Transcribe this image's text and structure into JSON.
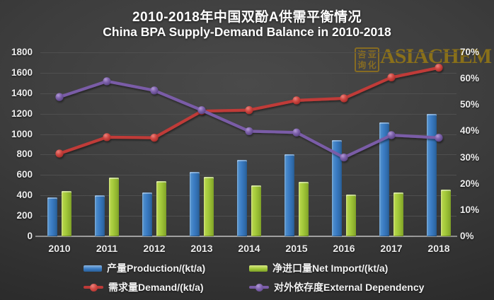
{
  "title": {
    "zh": "2010-2018年中国双酚A供需平衡情况",
    "en": "China BPA Supply-Demand Balance in 2010-2018"
  },
  "logo": {
    "brand": "ASIACHEM",
    "seal_chars": [
      "咨",
      "亚",
      "询",
      "化"
    ],
    "color": "#8e7318"
  },
  "chart_data": {
    "type": "bar",
    "subtype": "combo-bar-line-dual-axis",
    "title": "2010-2018年中国双酚A供需平衡情况 China BPA Supply-Demand Balance in 2010-2018",
    "categories": [
      "2010",
      "2011",
      "2012",
      "2013",
      "2014",
      "2015",
      "2016",
      "2017",
      "2018"
    ],
    "series": [
      {
        "name": "产量Production/(kt/a)",
        "type": "bar",
        "axis": "left",
        "color": "#3a7cc4",
        "values": [
          380,
          400,
          430,
          630,
          750,
          805,
          945,
          1115,
          1200
        ]
      },
      {
        "name": "净进口量Net Import/(kt/a)",
        "type": "bar",
        "axis": "left",
        "color": "#a3c93a",
        "values": [
          440,
          575,
          540,
          585,
          500,
          535,
          410,
          430,
          455
        ]
      },
      {
        "name": "需求量Demand/(kt/a)",
        "type": "line",
        "axis": "left",
        "color": "#c03a38",
        "values": [
          810,
          970,
          965,
          1225,
          1235,
          1330,
          1350,
          1555,
          1650
        ]
      },
      {
        "name": "对外依存度External Dependency",
        "type": "line",
        "axis": "right",
        "color": "#7a5ca7",
        "values": [
          53,
          59,
          55.5,
          48,
          40,
          39.5,
          30,
          38.5,
          37.5
        ]
      }
    ],
    "left_axis": {
      "min": 0,
      "max": 1800,
      "step": 200,
      "ticks": [
        "0",
        "200",
        "400",
        "600",
        "800",
        "1000",
        "1200",
        "1400",
        "1600",
        "1800"
      ]
    },
    "right_axis": {
      "min": 0,
      "max": 70,
      "step": 10,
      "ticks": [
        "0%",
        "10%",
        "20%",
        "30%",
        "40%",
        "50%",
        "60%",
        "70%"
      ]
    },
    "grid": "horizontal",
    "legend_position": "bottom"
  },
  "legend": {
    "items": [
      {
        "swatch": "bar",
        "color_class": "blue",
        "label": "产量Production/(kt/a)"
      },
      {
        "swatch": "bar",
        "color_class": "green",
        "label": "净进口量Net Import/(kt/a)"
      },
      {
        "swatch": "line",
        "color_class": "red",
        "label": "需求量Demand/(kt/a)"
      },
      {
        "swatch": "line",
        "color_class": "purple",
        "label": "对外依存度External Dependency"
      }
    ]
  }
}
